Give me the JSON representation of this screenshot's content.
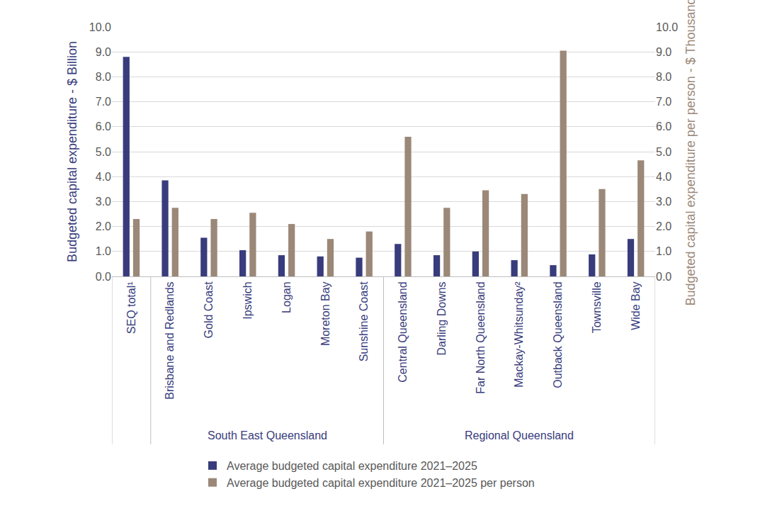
{
  "chart_data": {
    "type": "bar",
    "categories": [
      "SEQ total¹",
      "Brisbane and Redlands",
      "Gold Coast",
      "Ipswich",
      "Logan",
      "Moreton Bay",
      "Sunshine Coast",
      "Central Queensland",
      "Darling Downs",
      "Far North Queensland",
      "Mackay-Whitsunday²",
      "Outback Queensland",
      "Townsville",
      "Wide Bay"
    ],
    "groups": [
      {
        "label": "South East Queensland",
        "from": "Brisbane and Redlands",
        "to": "Sunshine Coast"
      },
      {
        "label": "Regional Queensland",
        "from": "Central Queensland",
        "to": "Wide Bay"
      }
    ],
    "series": [
      {
        "name": "Average budgeted capital expenditure 2021–2025",
        "color": "#383c7c",
        "axis": "y",
        "values": [
          8.8,
          3.85,
          1.55,
          1.05,
          0.85,
          0.8,
          0.75,
          1.3,
          0.85,
          1.0,
          0.65,
          0.45,
          0.88,
          1.5
        ]
      },
      {
        "name": "Average budgeted capital expenditure 2021–2025 per person",
        "color": "#9b8878",
        "axis": "y2",
        "values": [
          2.3,
          2.75,
          2.3,
          2.55,
          2.1,
          1.5,
          1.8,
          5.6,
          2.75,
          3.45,
          3.3,
          9.05,
          3.5,
          4.65
        ]
      }
    ],
    "ylabel": "Budgeted capital expenditure - $ Billion",
    "y2label": "Budgeted capital expenditure per person - $ Thousand",
    "ylim": [
      0,
      10
    ],
    "yticks": [
      {
        "value": 0,
        "label": "0.0"
      },
      {
        "value": 1,
        "label": "1.0"
      },
      {
        "value": 2,
        "label": "2.0"
      },
      {
        "value": 3,
        "label": "3.0"
      },
      {
        "value": 4,
        "label": "4.0"
      },
      {
        "value": 5,
        "label": "5.0"
      },
      {
        "value": 6,
        "label": "6.0"
      },
      {
        "value": 7,
        "label": "7.0"
      },
      {
        "value": 8,
        "label": "8.0"
      },
      {
        "value": 9,
        "label": "9.0"
      },
      {
        "value": 10,
        "label": "10.0"
      }
    ],
    "y2lim": [
      0,
      10
    ],
    "y2ticks": [
      {
        "value": 0,
        "label": "0.0"
      },
      {
        "value": 1,
        "label": "1.0"
      },
      {
        "value": 2,
        "label": "2.0"
      },
      {
        "value": 3,
        "label": "3.0"
      },
      {
        "value": 4,
        "label": "4.0"
      },
      {
        "value": 5,
        "label": "5.0"
      },
      {
        "value": 6,
        "label": "6.0"
      },
      {
        "value": 7,
        "label": "7.0"
      },
      {
        "value": 8,
        "label": "8.0"
      },
      {
        "value": 9,
        "label": "9.0"
      },
      {
        "value": 10,
        "label": "10.0"
      }
    ],
    "grid": true,
    "legend": "bottom"
  }
}
